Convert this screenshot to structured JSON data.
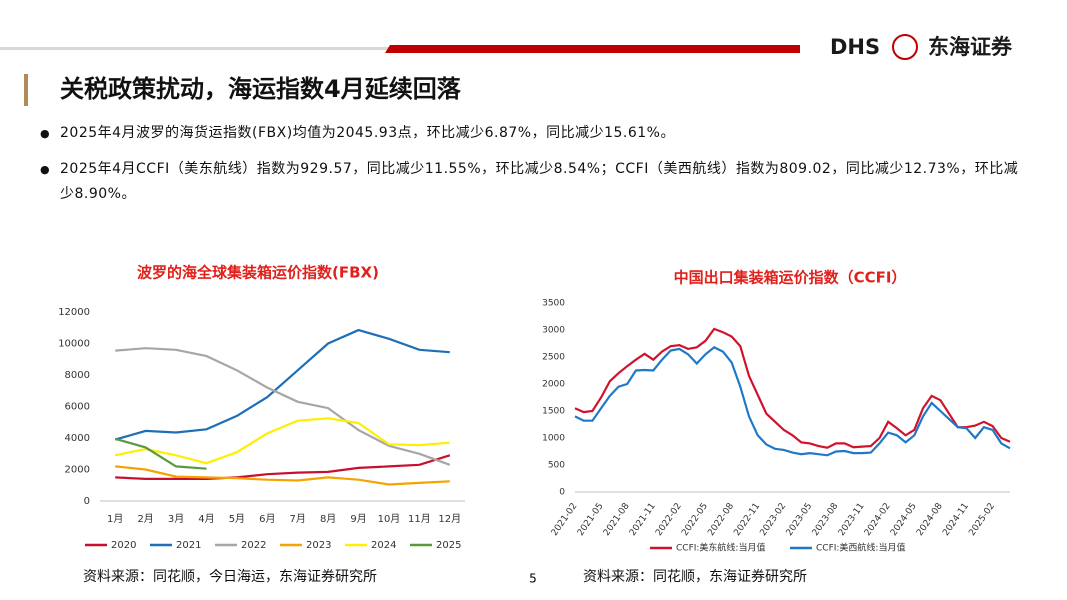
{
  "header": {
    "logo": "DHS",
    "company": "东海证券"
  },
  "title": "关税政策扰动，海运指数4月延续回落",
  "bullets": [
    "2025年4月波罗的海货运指数(FBX)均值为2045.93点，环比减少6.87%，同比减少15.61%。",
    "2025年4月CCFI（美东航线）指数为929.57，同比减少11.55%，环比减少8.54%；CCFI（美西航线）指数为809.02，同比减少12.73%，环比减少8.90%。"
  ],
  "chart_data": [
    {
      "type": "line",
      "title": "波罗的海全球集装箱运价指数(FBX)",
      "categories": [
        "1月",
        "2月",
        "3月",
        "4月",
        "5月",
        "6月",
        "7月",
        "8月",
        "9月",
        "10月",
        "11月",
        "12月"
      ],
      "ylim": [
        0,
        12000
      ],
      "yticks": [
        0,
        2000,
        4000,
        6000,
        8000,
        10000,
        12000
      ],
      "series": [
        {
          "name": "2020",
          "color": "#c8102e",
          "values": [
            1500,
            1400,
            1400,
            1400,
            1500,
            1700,
            1800,
            1850,
            2100,
            2200,
            2300,
            2900
          ]
        },
        {
          "name": "2021",
          "color": "#1f6fb8",
          "values": [
            3900,
            4450,
            4350,
            4550,
            5400,
            6600,
            8300,
            10000,
            10850,
            10300,
            9600,
            9450
          ]
        },
        {
          "name": "2022",
          "color": "#a6a6a6",
          "values": [
            9550,
            9700,
            9600,
            9200,
            8300,
            7200,
            6300,
            5900,
            4500,
            3500,
            3000,
            2300
          ]
        },
        {
          "name": "2023",
          "color": "#f5a300",
          "values": [
            2200,
            2000,
            1550,
            1500,
            1450,
            1350,
            1300,
            1500,
            1350,
            1050,
            1150,
            1250
          ]
        },
        {
          "name": "2024",
          "color": "#ffee00",
          "values": [
            2900,
            3300,
            2900,
            2400,
            3100,
            4300,
            5100,
            5250,
            4950,
            3600,
            3550,
            3700
          ]
        },
        {
          "name": "2025",
          "color": "#5a9a3c",
          "values": [
            3950,
            3400,
            2200,
            2050,
            null,
            null,
            null,
            null,
            null,
            null,
            null,
            null
          ]
        }
      ],
      "source": "资料来源：同花顺，今日海运，东海证券研究所"
    },
    {
      "type": "line",
      "title": "中国出口集装箱运价指数（CCFI）",
      "categories": [
        "2021-02",
        null,
        null,
        "2021-05",
        null,
        null,
        "2021-08",
        null,
        null,
        "2021-11",
        null,
        null,
        "2022-02",
        null,
        null,
        "2022-05",
        null,
        null,
        "2022-08",
        null,
        null,
        "2022-11",
        null,
        null,
        "2023-02",
        null,
        null,
        "2023-05",
        null,
        null,
        "2023-08",
        null,
        null,
        "2023-11",
        null,
        null,
        "2024-02",
        null,
        null,
        "2024-05",
        null,
        null,
        "2024-08",
        null,
        null,
        "2024-11",
        null,
        null,
        "2025-02",
        null,
        null
      ],
      "ylim": [
        0,
        3500
      ],
      "yticks": [
        0,
        500,
        1000,
        1500,
        2000,
        2500,
        3000,
        3500
      ],
      "series": [
        {
          "name": "CCFI:美东航线:当月值",
          "color": "#d0122d",
          "values": [
            1550,
            1480,
            1500,
            1750,
            2050,
            2200,
            2330,
            2450,
            2560,
            2450,
            2600,
            2700,
            2720,
            2650,
            2680,
            2800,
            3020,
            2960,
            2880,
            2700,
            2150,
            1800,
            1450,
            1300,
            1150,
            1050,
            920,
            900,
            850,
            820,
            900,
            900,
            830,
            840,
            850,
            1000,
            1300,
            1180,
            1050,
            1150,
            1550,
            1780,
            1700,
            1450,
            1200,
            1200,
            1230,
            1300,
            1220,
            1000,
            930
          ]
        },
        {
          "name": "CCFI:美西航线:当月值",
          "color": "#1f78c8",
          "values": [
            1400,
            1320,
            1320,
            1550,
            1780,
            1950,
            2000,
            2250,
            2260,
            2250,
            2450,
            2620,
            2650,
            2550,
            2380,
            2550,
            2680,
            2600,
            2400,
            1950,
            1400,
            1050,
            880,
            800,
            780,
            730,
            700,
            720,
            700,
            680,
            750,
            760,
            720,
            720,
            730,
            900,
            1100,
            1050,
            920,
            1050,
            1400,
            1650,
            1500,
            1350,
            1200,
            1180,
            1000,
            1200,
            1150,
            900,
            810
          ]
        }
      ],
      "source": "资料来源：同花顺，东海证券研究所"
    }
  ],
  "page_number": "5"
}
